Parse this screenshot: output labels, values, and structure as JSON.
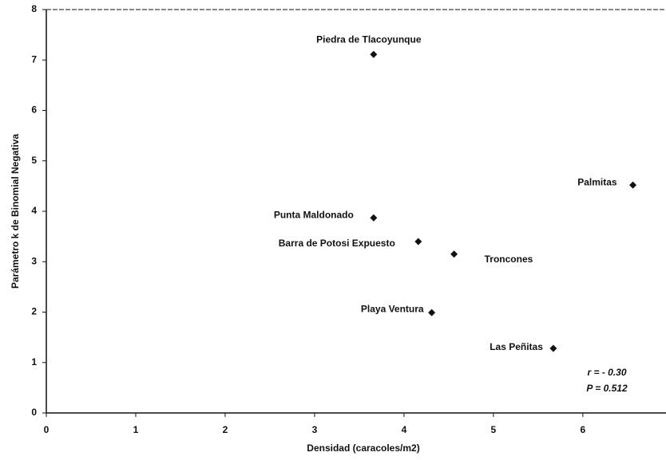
{
  "chart_data": {
    "type": "scatter",
    "x_label": "Densidad  (caracoles/m2)",
    "y_label": "Parámetro k de Binomial Negativa",
    "labels": [
      "Piedra de Tlacoyunque",
      "Punta Maldonado",
      "Barra de Potosi Expuesto",
      "Troncones",
      "Playa Ventura",
      "Las Peñitas",
      "Palmitas"
    ],
    "x": [
      3.66,
      3.66,
      4.16,
      4.56,
      4.31,
      5.67,
      6.56
    ],
    "values": [
      7.11,
      3.87,
      3.4,
      3.15,
      1.99,
      1.28,
      4.52
    ],
    "color": "#111111",
    "xlim": [
      0,
      6.93
    ],
    "xticks": [
      0,
      1,
      2,
      3,
      4,
      5,
      6
    ],
    "ylim": [
      0,
      8
    ],
    "yticks": [
      0,
      1,
      2,
      3,
      4,
      5,
      6,
      7,
      8
    ],
    "annotations": [
      "r = - 0.30",
      "P = 0.512"
    ]
  }
}
